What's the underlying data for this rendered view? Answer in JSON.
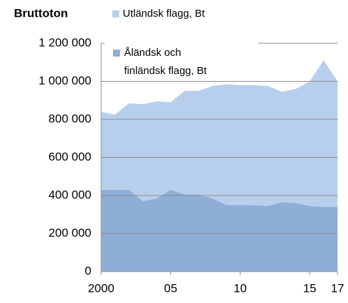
{
  "chart_data": {
    "type": "stacked-area",
    "title": "Bruttoton",
    "x": [
      2000,
      2001,
      2002,
      2003,
      2004,
      2005,
      2006,
      2007,
      2008,
      2009,
      2010,
      2011,
      2012,
      2013,
      2014,
      2015,
      2016,
      2017
    ],
    "series": [
      {
        "name": "Åländsk och finländsk flagg, Bt",
        "color": "#8eaed8",
        "values": [
          430000,
          430000,
          430000,
          370000,
          385000,
          430000,
          405000,
          405000,
          385000,
          350000,
          350000,
          350000,
          345000,
          365000,
          360000,
          345000,
          340000,
          340000
        ]
      },
      {
        "name": "Utländsk flagg, Bt",
        "color": "#b7cfec",
        "values": [
          410000,
          395000,
          455000,
          510000,
          510000,
          460000,
          545000,
          545000,
          590000,
          635000,
          630000,
          630000,
          630000,
          580000,
          600000,
          655000,
          770000,
          660000
        ]
      }
    ],
    "xlim": [
      2000,
      2017
    ],
    "xticks": [
      2000,
      {
        "value": 2005,
        "label": "05"
      },
      {
        "value": 2010,
        "label": "10"
      },
      {
        "value": 2015,
        "label": "15"
      },
      {
        "value": 2017,
        "label": "17"
      }
    ],
    "ylim": [
      0,
      1200000
    ],
    "yticks": [
      0,
      {
        "value": 200000,
        "label": "200 000"
      },
      {
        "value": 400000,
        "label": "400 000"
      },
      {
        "value": 600000,
        "label": "600 000"
      },
      {
        "value": 800000,
        "label": "800 000"
      },
      {
        "value": 1000000,
        "label": "1 000 000"
      },
      {
        "value": 1200000,
        "label": "1 200 000"
      }
    ],
    "grid": true
  }
}
